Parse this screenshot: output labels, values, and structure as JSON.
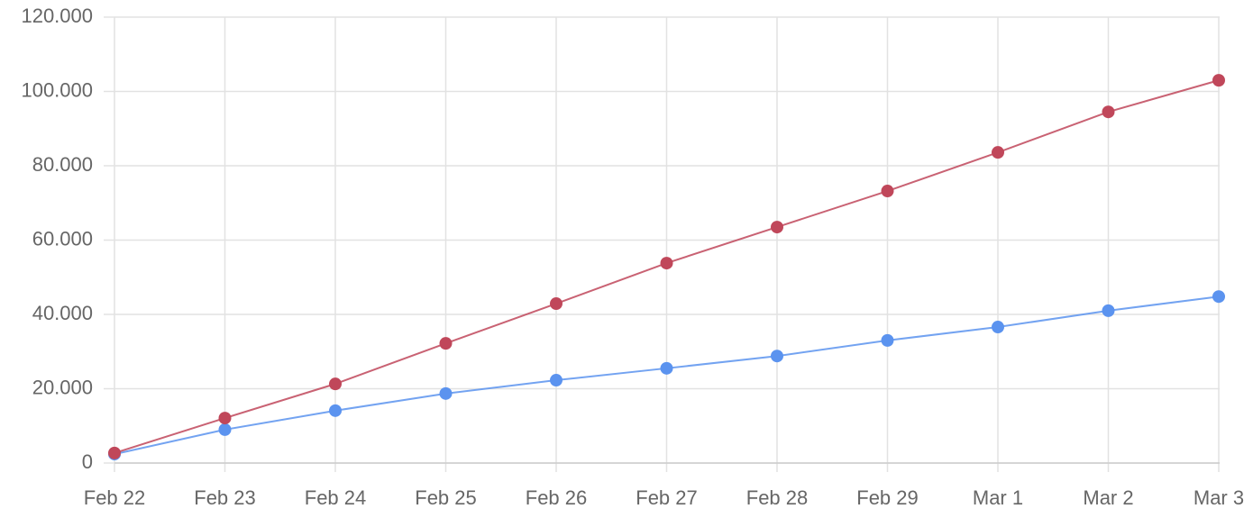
{
  "chart_data": {
    "type": "line",
    "categories": [
      "Feb 22",
      "Feb 23",
      "Feb 24",
      "Feb 25",
      "Feb 26",
      "Feb 27",
      "Feb 28",
      "Feb 29",
      "Mar 1",
      "Mar 2",
      "Mar 3"
    ],
    "series": [
      {
        "color": "#5b93ef",
        "values": [
          2400,
          9000,
          14100,
          18700,
          22300,
          25500,
          28800,
          33000,
          36600,
          41000,
          44800
        ]
      },
      {
        "color": "#c0475a",
        "values": [
          2700,
          12100,
          21300,
          32200,
          42900,
          53800,
          63500,
          73200,
          83600,
          94500,
          103000
        ]
      }
    ],
    "ylim": [
      0,
      120000
    ],
    "yticks": [
      0,
      {
        "value": 20000,
        "label": "20.000"
      },
      {
        "value": 40000,
        "label": "40.000"
      },
      {
        "value": 60000,
        "label": "60.000"
      },
      {
        "value": 80000,
        "label": "80.000"
      },
      {
        "value": 100000,
        "label": "100.000"
      },
      {
        "value": 120000,
        "label": "120.000"
      }
    ],
    "grid": true
  }
}
